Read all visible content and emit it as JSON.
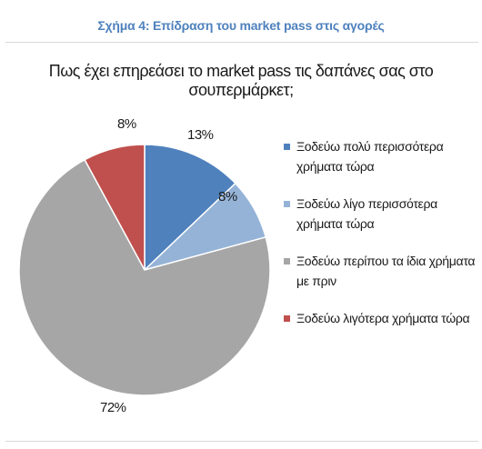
{
  "caption": "Σχήμα 4: Επίδραση του market pass στις αγορές",
  "chart_data": {
    "type": "pie",
    "title": "Πως έχει επηρεάσει το market pass τις δαπάνες σας στο σουπερμάρκετ;",
    "categories": [
      "Ξοδεύω πολύ περισσότερα χρήματα τώρα",
      "Ξοδεύω λίγο περισσότερα χρήματα τώρα",
      "Ξοδεύω περίπου τα ίδια χρήματα με πριν",
      "Ξοδεύω λιγότερα χρήματα τώρα"
    ],
    "values": [
      13,
      8,
      72,
      8
    ],
    "data_labels": [
      "13%",
      "8%",
      "72%",
      "8%"
    ],
    "colors": [
      "#4f81bd",
      "#95b3d7",
      "#a6a6a6",
      "#c0504d"
    ],
    "legend_position": "right"
  }
}
